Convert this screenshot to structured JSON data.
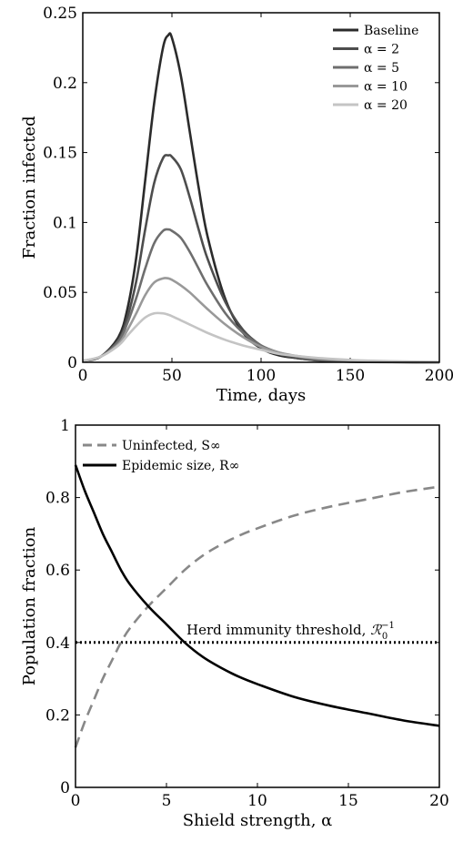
{
  "chart_data": [
    {
      "type": "line",
      "xlabel": "Time, days",
      "ylabel": "Fraction infected",
      "xlim": [
        0,
        200
      ],
      "ylim": [
        0,
        0.25
      ],
      "xticks": [
        "0",
        "50",
        "100",
        "150",
        "200"
      ],
      "yticks": [
        "0",
        "0.05",
        "0.1",
        "0.15",
        "0.2",
        "0.25"
      ],
      "legend_position": "top-right",
      "grid": false,
      "x": [
        0,
        10,
        20,
        25,
        30,
        35,
        40,
        45,
        48,
        50,
        55,
        60,
        65,
        70,
        80,
        90,
        100,
        110,
        120,
        130,
        140,
        150,
        160,
        180,
        200
      ],
      "series": [
        {
          "name": "Baseline",
          "color": "#2b2b2b",
          "values": [
            0.001,
            0.004,
            0.018,
            0.038,
            0.075,
            0.13,
            0.185,
            0.225,
            0.234,
            0.232,
            0.205,
            0.165,
            0.125,
            0.09,
            0.045,
            0.021,
            0.01,
            0.005,
            0.003,
            0.0015,
            0.0008,
            0.0004,
            0.0002,
            0.0001,
            0.0
          ]
        },
        {
          "name": "α = 2",
          "color": "#4d4d4d",
          "values": [
            0.001,
            0.004,
            0.016,
            0.032,
            0.058,
            0.095,
            0.128,
            0.146,
            0.148,
            0.147,
            0.138,
            0.118,
            0.095,
            0.074,
            0.043,
            0.023,
            0.012,
            0.006,
            0.003,
            0.0017,
            0.0009,
            0.0005,
            0.0003,
            0.0001,
            0.0
          ]
        },
        {
          "name": "α = 5",
          "color": "#6e6e6e",
          "values": [
            0.001,
            0.004,
            0.015,
            0.028,
            0.046,
            0.067,
            0.085,
            0.094,
            0.095,
            0.094,
            0.089,
            0.079,
            0.067,
            0.055,
            0.035,
            0.021,
            0.012,
            0.007,
            0.004,
            0.002,
            0.0012,
            0.0007,
            0.0004,
            0.0001,
            0.0
          ]
        },
        {
          "name": "α = 10",
          "color": "#999999",
          "values": [
            0.001,
            0.004,
            0.013,
            0.023,
            0.035,
            0.048,
            0.057,
            0.06,
            0.06,
            0.059,
            0.055,
            0.05,
            0.044,
            0.038,
            0.027,
            0.018,
            0.011,
            0.007,
            0.0045,
            0.003,
            0.002,
            0.0012,
            0.0007,
            0.0003,
            0.0001
          ]
        },
        {
          "name": "α = 20",
          "color": "#c4c4c4",
          "values": [
            0.001,
            0.004,
            0.012,
            0.019,
            0.026,
            0.032,
            0.035,
            0.035,
            0.034,
            0.033,
            0.03,
            0.027,
            0.024,
            0.021,
            0.016,
            0.012,
            0.009,
            0.006,
            0.0045,
            0.0033,
            0.0024,
            0.0017,
            0.0012,
            0.0006,
            0.0003
          ]
        }
      ]
    },
    {
      "type": "line",
      "xlabel": "Shield strength, α",
      "ylabel": "Population fraction",
      "xlim": [
        0,
        20
      ],
      "ylim": [
        0,
        1
      ],
      "xticks": [
        "0",
        "5",
        "10",
        "15",
        "20"
      ],
      "yticks": [
        "0",
        "0.2",
        "0.4",
        "0.6",
        "0.8",
        "1"
      ],
      "legend_position": "top-left",
      "grid": false,
      "x": [
        0,
        0.5,
        1,
        1.5,
        2,
        2.5,
        3,
        4,
        5,
        6,
        7,
        8,
        9,
        10,
        12,
        14,
        16,
        18,
        20
      ],
      "series": [
        {
          "name": "Uninfected, S∞",
          "style": "dashed",
          "color": "#888888",
          "values": [
            0.11,
            0.18,
            0.24,
            0.3,
            0.35,
            0.4,
            0.44,
            0.5,
            0.55,
            0.6,
            0.64,
            0.67,
            0.695,
            0.715,
            0.75,
            0.775,
            0.795,
            0.815,
            0.83
          ]
        },
        {
          "name": "Epidemic size, R∞",
          "style": "solid",
          "color": "#000000",
          "values": [
            0.89,
            0.82,
            0.76,
            0.7,
            0.65,
            0.6,
            0.56,
            0.5,
            0.45,
            0.4,
            0.36,
            0.33,
            0.305,
            0.285,
            0.25,
            0.225,
            0.205,
            0.185,
            0.17
          ]
        }
      ],
      "reference_lines": [
        {
          "label": "Herd immunity threshold, ",
          "symbol": "ℛ",
          "subscript": "0",
          "superscript": "−1",
          "y": 0.4,
          "style": "dotted",
          "color": "#000000"
        }
      ]
    }
  ]
}
